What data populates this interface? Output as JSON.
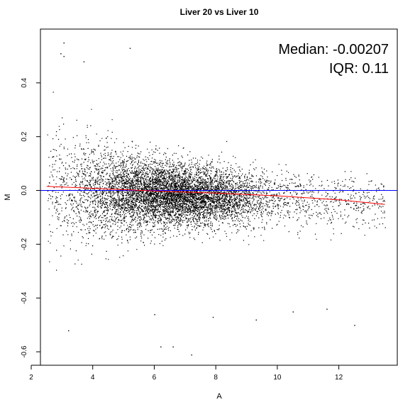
{
  "chart_data": {
    "type": "scatter",
    "title": "Liver 20 vs Liver 10",
    "xlabel": "A",
    "ylabel": "M",
    "xlim": [
      2.3,
      13.9
    ],
    "ylim": [
      -0.65,
      0.6
    ],
    "xticks": [
      2,
      4,
      6,
      8,
      10,
      12
    ],
    "yticks": [
      -0.6,
      -0.4,
      -0.2,
      0.0,
      0.2,
      0.4
    ],
    "annotations": {
      "median": "Median: -0.00207",
      "iqr": "IQR: 0.11"
    },
    "zero_line": {
      "y": 0,
      "color": "#0000ff"
    },
    "loess_line": {
      "color": "#ff0000",
      "x": [
        2.5,
        4,
        6,
        8,
        10,
        12,
        13.5
      ],
      "y": [
        0.015,
        0.008,
        -0.002,
        -0.01,
        -0.02,
        -0.035,
        -0.052
      ]
    },
    "point_color": "#000000",
    "point_cloud": {
      "approx_count": 8000,
      "a_range": [
        2.5,
        13.5
      ],
      "m_center": -0.00207,
      "m_iqr": 0.11,
      "density_peak_a": 6.5
    },
    "outliers": [
      {
        "x": 3.05,
        "y": 0.55
      },
      {
        "x": 2.95,
        "y": 0.51
      },
      {
        "x": 3.05,
        "y": 0.5
      },
      {
        "x": 5.2,
        "y": 0.53
      },
      {
        "x": 3.7,
        "y": 0.48
      },
      {
        "x": 3.2,
        "y": -0.52
      },
      {
        "x": 6.0,
        "y": -0.46
      },
      {
        "x": 6.2,
        "y": -0.58
      },
      {
        "x": 7.2,
        "y": -0.61
      },
      {
        "x": 6.6,
        "y": -0.58
      },
      {
        "x": 7.9,
        "y": -0.47
      },
      {
        "x": 9.3,
        "y": -0.48
      },
      {
        "x": 11.6,
        "y": -0.44
      },
      {
        "x": 12.5,
        "y": -0.5
      },
      {
        "x": 10.5,
        "y": -0.45
      }
    ]
  }
}
